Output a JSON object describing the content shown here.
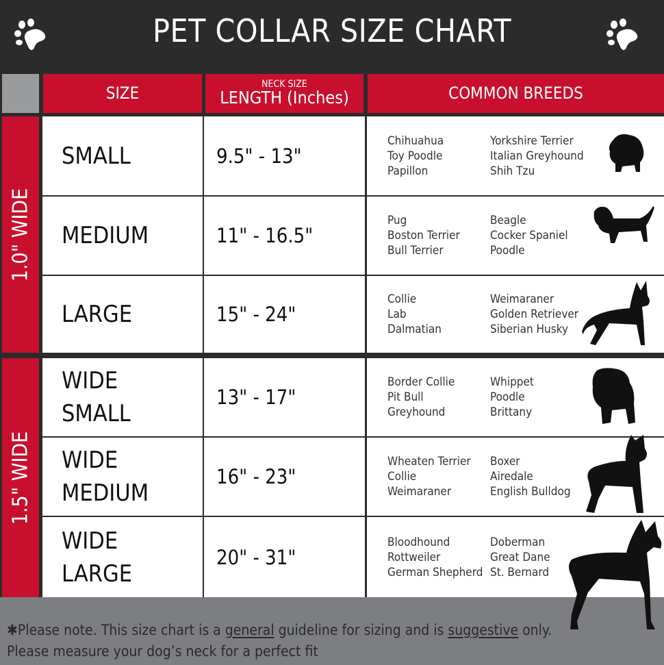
{
  "title": "PET COLLAR SIZE CHART",
  "colors": {
    "red": "#c8102e",
    "dark": "#2b2b2b",
    "gray": "#7d7e82"
  },
  "headers": {
    "size": "SIZE",
    "length_small": "NECK SIZE",
    "length": "LENGTH (Inches)",
    "breeds": "COMMON BREEDS"
  },
  "groups": [
    "1.0\" WIDE",
    "1.5\" WIDE"
  ],
  "rows": [
    {
      "size": [
        "SMALL"
      ],
      "length": "9.5\" - 13\"",
      "breeds_a": [
        "Chihuahua",
        "Toy Poodle",
        "Papillon"
      ],
      "breeds_b": [
        "Yorkshire Terrier",
        "Italian Greyhound",
        "Shih Tzu"
      ],
      "icon": "pomeranian-silhouette-icon"
    },
    {
      "size": [
        "MEDIUM"
      ],
      "length": "11\" - 16.5\"",
      "breeds_a": [
        "Pug",
        "Boston Terrier",
        "Bull Terrier"
      ],
      "breeds_b": [
        "Beagle",
        "Cocker Spaniel",
        "Poodle"
      ],
      "icon": "dachshund-silhouette-icon"
    },
    {
      "size": [
        "LARGE"
      ],
      "length": "15\" - 24\"",
      "breeds_a": [
        "Collie",
        "Lab",
        "Dalmatian"
      ],
      "breeds_b": [
        "Weimaraner",
        "Golden Retriever",
        "Siberian Husky"
      ],
      "icon": "shepherd-silhouette-icon"
    },
    {
      "size": [
        "WIDE",
        "SMALL"
      ],
      "length": "13\" - 17\"",
      "breeds_a": [
        "Border Collie",
        "Pit Bull",
        "Greyhound"
      ],
      "breeds_b": [
        "Whippet",
        "Poodle",
        "Brittany"
      ],
      "icon": "bulldog-silhouette-icon"
    },
    {
      "size": [
        "WIDE",
        "MEDIUM"
      ],
      "length": "16\" - 23\"",
      "breeds_a": [
        "Wheaten Terrier",
        "Collie",
        "Weimaraner"
      ],
      "breeds_b": [
        "Boxer",
        "Airedale",
        "English Bulldog"
      ],
      "icon": "pitbull-silhouette-icon"
    },
    {
      "size": [
        "WIDE",
        "LARGE"
      ],
      "length": "20\" - 31\"",
      "breeds_a": [
        "Bloodhound",
        "Rottweiler",
        "German Shepherd"
      ],
      "breeds_b": [
        "Doberman",
        "Great Dane",
        "St. Bernard"
      ],
      "icon": "doberman-silhouette-icon"
    }
  ],
  "footer": {
    "asterisk": "✱",
    "part1": "Please note. This size chart is a",
    "u1": "general",
    "part2": "guideline for sizing and is",
    "u2": "suggestive",
    "part3": "only.",
    "line2": "Please measure your dog’s neck for a perfect fit"
  }
}
